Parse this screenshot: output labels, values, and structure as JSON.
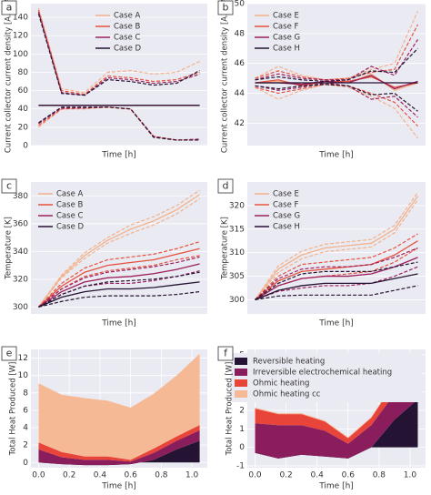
{
  "chart_data": [
    {
      "type": "line",
      "label": "a",
      "x_label": "Time [h]",
      "y_label": "Current collector current density [A.m⁻²]",
      "x": [
        0,
        0.15,
        0.3,
        0.45,
        0.6,
        0.75,
        0.9,
        1.05
      ],
      "xlim": [
        -0.05,
        1.1
      ],
      "ylim": [
        0,
        155
      ],
      "yticks": [
        0,
        20,
        40,
        60,
        80,
        100,
        120,
        140
      ],
      "grid": true,
      "legend": "upper center",
      "series": [
        {
          "name": "Case A",
          "color": "#f3b28c",
          "values": [
            44,
            44,
            44,
            44,
            44,
            44,
            44,
            44
          ],
          "upper": [
            150,
            62,
            58,
            80,
            82,
            78,
            80,
            92
          ],
          "lower": [
            20,
            40,
            40,
            42,
            40,
            10,
            6,
            6
          ]
        },
        {
          "name": "Case B",
          "color": "#e5533f",
          "values": [
            44,
            44,
            44,
            44,
            44,
            44,
            44,
            44
          ],
          "upper": [
            148,
            60,
            56,
            76,
            74,
            70,
            72,
            80
          ],
          "lower": [
            22,
            40,
            41,
            42,
            40,
            10,
            6,
            6
          ]
        },
        {
          "name": "Case C",
          "color": "#9c1f5c",
          "values": [
            44,
            44,
            44,
            44,
            44,
            44,
            44,
            44
          ],
          "upper": [
            146,
            58,
            55,
            74,
            72,
            68,
            70,
            78
          ],
          "lower": [
            24,
            41,
            41,
            42,
            40,
            10,
            6,
            7
          ]
        },
        {
          "name": "Case D",
          "color": "#241332",
          "values": [
            44,
            44,
            44,
            44,
            44,
            44,
            44,
            44
          ],
          "upper": [
            144,
            57,
            55,
            72,
            70,
            66,
            68,
            82
          ],
          "lower": [
            25,
            42,
            42,
            42,
            40,
            9,
            6,
            6
          ]
        }
      ]
    },
    {
      "type": "line",
      "label": "b",
      "x_label": "Time [h]",
      "y_label": "Current collector current density [A.m⁻²]",
      "x": [
        0,
        0.15,
        0.3,
        0.45,
        0.6,
        0.75,
        0.9,
        1.05
      ],
      "xlim": [
        -0.05,
        1.1
      ],
      "ylim": [
        40.5,
        50
      ],
      "yticks": [
        42,
        44,
        46,
        48,
        50
      ],
      "grid": true,
      "legend": "upper left",
      "series": [
        {
          "name": "Case E",
          "color": "#f3b28c",
          "values": [
            44.7,
            44.8,
            44.6,
            44.8,
            44.7,
            45.3,
            44.2,
            44.7
          ],
          "upper": [
            45,
            45.8,
            45.2,
            44.9,
            45,
            45.6,
            46,
            49.5
          ],
          "lower": [
            44.4,
            43.6,
            44.2,
            44.6,
            44.4,
            43.8,
            43,
            41
          ]
        },
        {
          "name": "Case F",
          "color": "#e5533f",
          "values": [
            44.7,
            44.9,
            44.5,
            44.8,
            44.8,
            45.1,
            44.4,
            44.7
          ],
          "upper": [
            45,
            45.5,
            45.1,
            44.9,
            45,
            45.4,
            45.6,
            48.6
          ],
          "lower": [
            44.4,
            44,
            44.3,
            44.6,
            44.5,
            44,
            43.4,
            41.8
          ]
        },
        {
          "name": "Case G",
          "color": "#9c1f5c",
          "values": [
            44.7,
            44.7,
            44.6,
            44.8,
            44.7,
            45.2,
            44.3,
            44.8
          ],
          "upper": [
            44.9,
            45.3,
            45,
            44.9,
            44.9,
            45.8,
            45.2,
            47.6
          ],
          "lower": [
            44.5,
            44.2,
            44.4,
            44.7,
            44.5,
            43.6,
            43.8,
            42.4
          ]
        },
        {
          "name": "Case H",
          "color": "#241332",
          "values": [
            44.7,
            44.7,
            44.7,
            44.7,
            44.7,
            44.7,
            44.7,
            44.7
          ],
          "upper": [
            44.9,
            45.1,
            44.9,
            44.8,
            44.9,
            45.5,
            45.4,
            47
          ],
          "lower": [
            44.5,
            44.3,
            44.5,
            44.6,
            44.5,
            43.9,
            44,
            42.8
          ]
        }
      ]
    },
    {
      "type": "line",
      "label": "c",
      "x_label": "Time [h]",
      "y_label": "Temperature [K]",
      "x": [
        0,
        0.15,
        0.3,
        0.45,
        0.6,
        0.75,
        0.9,
        1.05
      ],
      "xlim": [
        -0.05,
        1.1
      ],
      "ylim": [
        295,
        390
      ],
      "yticks": [
        300,
        320,
        340,
        360,
        380
      ],
      "grid": true,
      "legend": "upper left",
      "series": [
        {
          "name": "Case A",
          "color": "#f3b28c",
          "values": [
            300,
            322,
            337,
            348,
            356,
            362,
            370,
            381
          ],
          "upper": [
            300,
            323,
            339,
            350,
            359,
            365,
            373,
            384
          ],
          "lower": [
            300,
            321,
            335,
            346,
            353,
            359,
            367,
            378
          ]
        },
        {
          "name": "Case B",
          "color": "#e5533f",
          "values": [
            300,
            315,
            325,
            330,
            332,
            334,
            338,
            342
          ],
          "upper": [
            300,
            317,
            328,
            334,
            336,
            338,
            342,
            347
          ],
          "lower": [
            300,
            313,
            322,
            326,
            328,
            330,
            334,
            337
          ]
        },
        {
          "name": "Case C",
          "color": "#9c1f5c",
          "values": [
            300,
            311,
            318,
            321,
            322,
            324,
            327,
            331
          ],
          "upper": [
            300,
            313,
            321,
            325,
            327,
            329,
            332,
            336
          ],
          "lower": [
            300,
            309,
            315,
            317,
            317,
            319,
            322,
            326
          ]
        },
        {
          "name": "Case D",
          "color": "#241332",
          "values": [
            300,
            307,
            311,
            313,
            313,
            314,
            316,
            318
          ],
          "upper": [
            300,
            309,
            315,
            318,
            319,
            320,
            322,
            325
          ],
          "lower": [
            300,
            304,
            307,
            308,
            308,
            308,
            309,
            311
          ]
        }
      ]
    },
    {
      "type": "line",
      "label": "d",
      "x_label": "Time [h]",
      "y_label": "Temperature [K]",
      "x": [
        0,
        0.15,
        0.3,
        0.45,
        0.6,
        0.75,
        0.9,
        1.05
      ],
      "xlim": [
        -0.05,
        1.1
      ],
      "ylim": [
        297,
        325
      ],
      "yticks": [
        300,
        305,
        310,
        315,
        320
      ],
      "grid": true,
      "legend": "upper left",
      "series": [
        {
          "name": "Case E",
          "color": "#f3b28c",
          "values": [
            300,
            306.5,
            309.5,
            311,
            311.5,
            312,
            315,
            322
          ],
          "upper": [
            300,
            307.2,
            310.3,
            311.8,
            312.3,
            312.8,
            315.8,
            322.8
          ],
          "lower": [
            300,
            305.8,
            308.7,
            310.2,
            310.7,
            311.2,
            314.2,
            321.2
          ]
        },
        {
          "name": "Case F",
          "color": "#e5533f",
          "values": [
            300,
            304,
            306,
            306.5,
            307,
            307.5,
            309.5,
            312.5
          ],
          "upper": [
            300,
            305,
            307.5,
            308,
            308.5,
            309,
            311,
            314
          ],
          "lower": [
            300,
            303,
            304.5,
            305,
            305.5,
            306,
            308,
            311
          ]
        },
        {
          "name": "Case G",
          "color": "#9c1f5c",
          "values": [
            300,
            303,
            304.5,
            305,
            305,
            305.5,
            307,
            309
          ],
          "upper": [
            300,
            304.5,
            306.5,
            307,
            307,
            307.5,
            309,
            311
          ],
          "lower": [
            300,
            301.8,
            302.5,
            303,
            303,
            303.5,
            305,
            307
          ]
        },
        {
          "name": "Case H",
          "color": "#241332",
          "values": [
            300,
            302,
            303,
            303.5,
            303.5,
            303.5,
            304.5,
            305.5
          ],
          "upper": [
            300,
            303.5,
            305.5,
            306,
            306,
            306,
            307,
            308
          ],
          "lower": [
            300,
            300.8,
            301,
            301,
            301,
            301,
            302,
            303
          ]
        }
      ]
    },
    {
      "type": "area",
      "label": "e",
      "x_label": "Time [h]",
      "y_label": "Total Heat Produced [W]",
      "x": [
        0,
        0.15,
        0.3,
        0.45,
        0.6,
        0.75,
        0.9,
        1.05
      ],
      "xlim": [
        -0.05,
        1.1
      ],
      "xticks": [
        {
          "value": 0,
          "label": "0.0"
        },
        0.2,
        0.4,
        0.6,
        0.8,
        {
          "value": 1,
          "label": "1.0"
        }
      ],
      "ylim": [
        -0.6,
        13
      ],
      "yticks": [
        0,
        2,
        4,
        6,
        8,
        10,
        12
      ],
      "grid": true,
      "series": [
        {
          "color": "#241332",
          "values": [
            0,
            -0.2,
            -0.3,
            -0.3,
            -0.2,
            0.3,
            1.5,
            2.5
          ]
        },
        {
          "color": "#8a1d5c",
          "values": [
            1.5,
            0.8,
            0.6,
            0.6,
            0.3,
            0.8,
            1,
            1.2
          ]
        },
        {
          "color": "#e8443a",
          "values": [
            0.8,
            0.6,
            0.4,
            0.4,
            0.2,
            0.5,
            0.5,
            0.6
          ]
        },
        {
          "color": "#f6b995",
          "values": [
            6.8,
            6.6,
            6.7,
            6.4,
            6,
            6.3,
            7,
            8.2
          ]
        }
      ]
    },
    {
      "type": "area",
      "label": "f",
      "x_label": "Time [h]",
      "y_label": "Total Heat Produced [W]",
      "x": [
        0,
        0.15,
        0.3,
        0.45,
        0.6,
        0.75,
        0.9,
        1.05
      ],
      "xlim": [
        -0.05,
        1.1
      ],
      "xticks": [
        {
          "value": 0,
          "label": "0.0"
        },
        0.2,
        0.4,
        0.6,
        0.8,
        {
          "value": 1,
          "label": "1.0"
        }
      ],
      "ylim": [
        -1.1,
        5.3
      ],
      "yticks": [
        -1,
        0,
        1,
        2,
        3,
        4,
        5
      ],
      "grid": true,
      "legend": "upper right",
      "series": [
        {
          "name": "Reversible heating",
          "color": "#241332",
          "values": [
            -0.3,
            -0.6,
            -0.4,
            -0.5,
            -0.6,
            0,
            1.5,
            2.6
          ]
        },
        {
          "name": "Irreversible electrochemical heating",
          "color": "#8a1d5c",
          "values": [
            1.6,
            1.8,
            1.6,
            1.4,
            0.8,
            1.2,
            1.4,
            1.5
          ]
        },
        {
          "name": "Ohmic heating",
          "color": "#e8443a",
          "values": [
            0.8,
            0.6,
            0.6,
            0.5,
            0.3,
            0.4,
            0.6,
            0.7
          ]
        },
        {
          "name": "Ohmic heating cc",
          "color": "#f6b995",
          "values": [
            0.05,
            0.05,
            0.05,
            0.05,
            0.05,
            0.05,
            0.05,
            0.05
          ]
        }
      ]
    }
  ]
}
